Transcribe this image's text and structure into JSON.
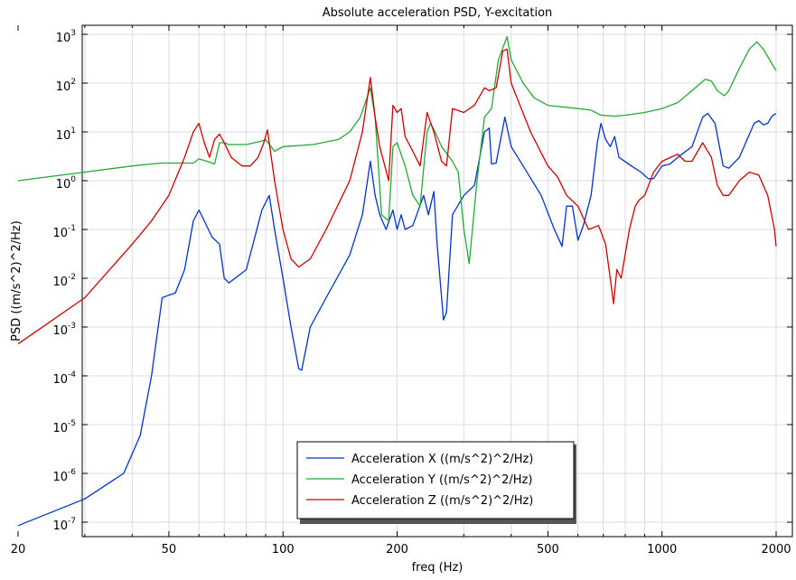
{
  "chart_data": {
    "type": "line",
    "title": "Absolute acceleration PSD, Y-excitation",
    "xlabel": "freq (Hz)",
    "ylabel": "PSD ((m/s^2)^2/Hz)",
    "xscale": "log",
    "yscale": "log",
    "xlim": [
      20,
      2000
    ],
    "ylim": [
      5e-08,
      1500.0
    ],
    "x_ticks": [
      20,
      50,
      100,
      200,
      500,
      1000,
      2000
    ],
    "x_tick_labels": [
      "20",
      "50",
      "100",
      "200",
      "500",
      "1000",
      "2000"
    ],
    "y_tick_exponents": [
      -7,
      -6,
      -5,
      -4,
      -3,
      -2,
      -1,
      0,
      1,
      2,
      3
    ],
    "y_tick_base": "10",
    "grid": true,
    "legend_position": "bottom-center",
    "series": [
      {
        "name": "Acceleration X ((m/s^2)^2/Hz)",
        "color": "#0033cc",
        "points": [
          [
            20,
            8.5e-08
          ],
          [
            30,
            3e-07
          ],
          [
            38,
            1e-06
          ],
          [
            42,
            6e-06
          ],
          [
            45,
            0.0001
          ],
          [
            48,
            0.004
          ],
          [
            50,
            0.0045
          ],
          [
            52,
            0.005
          ],
          [
            55,
            0.015
          ],
          [
            58,
            0.15
          ],
          [
            60,
            0.25
          ],
          [
            62,
            0.15
          ],
          [
            65,
            0.07
          ],
          [
            68,
            0.05
          ],
          [
            70,
            0.01
          ],
          [
            72,
            0.008
          ],
          [
            80,
            0.015
          ],
          [
            88,
            0.25
          ],
          [
            92,
            0.5
          ],
          [
            95,
            0.1
          ],
          [
            100,
            0.01
          ],
          [
            105,
            0.001
          ],
          [
            110,
            0.00014
          ],
          [
            112,
            0.00013
          ],
          [
            118,
            0.001
          ],
          [
            130,
            0.004
          ],
          [
            150,
            0.03
          ],
          [
            162,
            0.2
          ],
          [
            170,
            2.5
          ],
          [
            175,
            0.5
          ],
          [
            180,
            0.2
          ],
          [
            187,
            0.1
          ],
          [
            195,
            0.25
          ],
          [
            200,
            0.1
          ],
          [
            205,
            0.2
          ],
          [
            210,
            0.1
          ],
          [
            220,
            0.12
          ],
          [
            235,
            0.5
          ],
          [
            242,
            0.2
          ],
          [
            250,
            0.6
          ],
          [
            255,
            0.05
          ],
          [
            265,
            0.0014
          ],
          [
            270,
            0.002
          ],
          [
            280,
            0.2
          ],
          [
            300,
            0.5
          ],
          [
            320,
            0.8
          ],
          [
            340,
            10
          ],
          [
            350,
            12
          ],
          [
            355,
            2.2
          ],
          [
            365,
            2.3
          ],
          [
            385,
            20
          ],
          [
            400,
            5
          ],
          [
            430,
            2
          ],
          [
            480,
            0.5
          ],
          [
            520,
            0.1
          ],
          [
            545,
            0.045
          ],
          [
            560,
            0.3
          ],
          [
            580,
            0.3
          ],
          [
            600,
            0.06
          ],
          [
            620,
            0.12
          ],
          [
            650,
            0.5
          ],
          [
            675,
            6
          ],
          [
            690,
            15
          ],
          [
            710,
            7
          ],
          [
            730,
            5
          ],
          [
            750,
            8
          ],
          [
            770,
            3
          ],
          [
            830,
            2
          ],
          [
            880,
            1.5
          ],
          [
            920,
            1.1
          ],
          [
            950,
            1.1
          ],
          [
            1000,
            2
          ],
          [
            1050,
            2.2
          ],
          [
            1100,
            3
          ],
          [
            1200,
            5
          ],
          [
            1280,
            20
          ],
          [
            1320,
            24
          ],
          [
            1380,
            15
          ],
          [
            1450,
            2
          ],
          [
            1500,
            1.8
          ],
          [
            1600,
            3
          ],
          [
            1750,
            15
          ],
          [
            1800,
            17
          ],
          [
            1850,
            14
          ],
          [
            1900,
            15
          ],
          [
            1950,
            21
          ],
          [
            2000,
            24
          ]
        ]
      },
      {
        "name": "Acceleration Y ((m/s^2)^2/Hz)",
        "color": "#22aa33",
        "points": [
          [
            20,
            1.0
          ],
          [
            30,
            1.5
          ],
          [
            40,
            2.0
          ],
          [
            45,
            2.2
          ],
          [
            48,
            2.3
          ],
          [
            55,
            2.3
          ],
          [
            58,
            2.3
          ],
          [
            60,
            2.8
          ],
          [
            63,
            2.5
          ],
          [
            66,
            2.2
          ],
          [
            68,
            6
          ],
          [
            70,
            6
          ],
          [
            72,
            5.5
          ],
          [
            80,
            5.5
          ],
          [
            88,
            6.5
          ],
          [
            90,
            7
          ],
          [
            95,
            4
          ],
          [
            100,
            5
          ],
          [
            120,
            5.5
          ],
          [
            140,
            7
          ],
          [
            150,
            10
          ],
          [
            160,
            20
          ],
          [
            170,
            80
          ],
          [
            175,
            20
          ],
          [
            182,
            0.2
          ],
          [
            190,
            0.15
          ],
          [
            195,
            5
          ],
          [
            200,
            6
          ],
          [
            210,
            2
          ],
          [
            220,
            0.5
          ],
          [
            230,
            0.3
          ],
          [
            240,
            10
          ],
          [
            245,
            15
          ],
          [
            252,
            10
          ],
          [
            262,
            5
          ],
          [
            280,
            2.5
          ],
          [
            290,
            1.5
          ],
          [
            300,
            0.1
          ],
          [
            310,
            0.02
          ],
          [
            325,
            1
          ],
          [
            340,
            20
          ],
          [
            355,
            30
          ],
          [
            370,
            300
          ],
          [
            390,
            900
          ],
          [
            400,
            300
          ],
          [
            430,
            100
          ],
          [
            460,
            50
          ],
          [
            500,
            35
          ],
          [
            600,
            30
          ],
          [
            650,
            28
          ],
          [
            690,
            22
          ],
          [
            750,
            21
          ],
          [
            800,
            22
          ],
          [
            900,
            25
          ],
          [
            1000,
            30
          ],
          [
            1100,
            40
          ],
          [
            1200,
            70
          ],
          [
            1300,
            120
          ],
          [
            1350,
            110
          ],
          [
            1400,
            70
          ],
          [
            1460,
            55
          ],
          [
            1500,
            70
          ],
          [
            1600,
            200
          ],
          [
            1700,
            500
          ],
          [
            1780,
            700
          ],
          [
            1850,
            500
          ],
          [
            1950,
            250
          ],
          [
            2000,
            180
          ]
        ]
      },
      {
        "name": "Acceleration Z ((m/s^2)^2/Hz)",
        "color": "#cc0000",
        "points": [
          [
            20,
            0.00045
          ],
          [
            30,
            0.004
          ],
          [
            40,
            0.05
          ],
          [
            45,
            0.15
          ],
          [
            50,
            0.5
          ],
          [
            55,
            3
          ],
          [
            58,
            10
          ],
          [
            60,
            15
          ],
          [
            62,
            6
          ],
          [
            64,
            3
          ],
          [
            66,
            7
          ],
          [
            68,
            9
          ],
          [
            70,
            6
          ],
          [
            73,
            3
          ],
          [
            78,
            2
          ],
          [
            82,
            2
          ],
          [
            86,
            3
          ],
          [
            89,
            6
          ],
          [
            91,
            11
          ],
          [
            95,
            1
          ],
          [
            100,
            0.1
          ],
          [
            105,
            0.025
          ],
          [
            110,
            0.017
          ],
          [
            118,
            0.025
          ],
          [
            130,
            0.1
          ],
          [
            150,
            1
          ],
          [
            162,
            10
          ],
          [
            170,
            130
          ],
          [
            175,
            20
          ],
          [
            180,
            5
          ],
          [
            190,
            1
          ],
          [
            195,
            35
          ],
          [
            200,
            25
          ],
          [
            205,
            30
          ],
          [
            210,
            8
          ],
          [
            220,
            4
          ],
          [
            230,
            2
          ],
          [
            240,
            25
          ],
          [
            250,
            10
          ],
          [
            262,
            2.5
          ],
          [
            270,
            2
          ],
          [
            280,
            30
          ],
          [
            300,
            25
          ],
          [
            320,
            35
          ],
          [
            340,
            80
          ],
          [
            350,
            70
          ],
          [
            365,
            80
          ],
          [
            380,
            450
          ],
          [
            390,
            500
          ],
          [
            400,
            100
          ],
          [
            450,
            10
          ],
          [
            500,
            2
          ],
          [
            530,
            1.2
          ],
          [
            560,
            0.5
          ],
          [
            600,
            0.3
          ],
          [
            640,
            0.1
          ],
          [
            680,
            0.12
          ],
          [
            710,
            0.05
          ],
          [
            730,
            0.01
          ],
          [
            745,
            0.003
          ],
          [
            760,
            0.015
          ],
          [
            780,
            0.01
          ],
          [
            820,
            0.1
          ],
          [
            850,
            0.3
          ],
          [
            870,
            0.4
          ],
          [
            900,
            0.5
          ],
          [
            950,
            1.5
          ],
          [
            1000,
            2.5
          ],
          [
            1100,
            3.5
          ],
          [
            1150,
            2.5
          ],
          [
            1200,
            2.5
          ],
          [
            1280,
            6
          ],
          [
            1350,
            3
          ],
          [
            1400,
            0.8
          ],
          [
            1450,
            0.5
          ],
          [
            1500,
            0.5
          ],
          [
            1600,
            1
          ],
          [
            1700,
            1.5
          ],
          [
            1800,
            1.3
          ],
          [
            1900,
            0.5
          ],
          [
            1980,
            0.1
          ],
          [
            2000,
            0.045
          ]
        ]
      }
    ]
  }
}
